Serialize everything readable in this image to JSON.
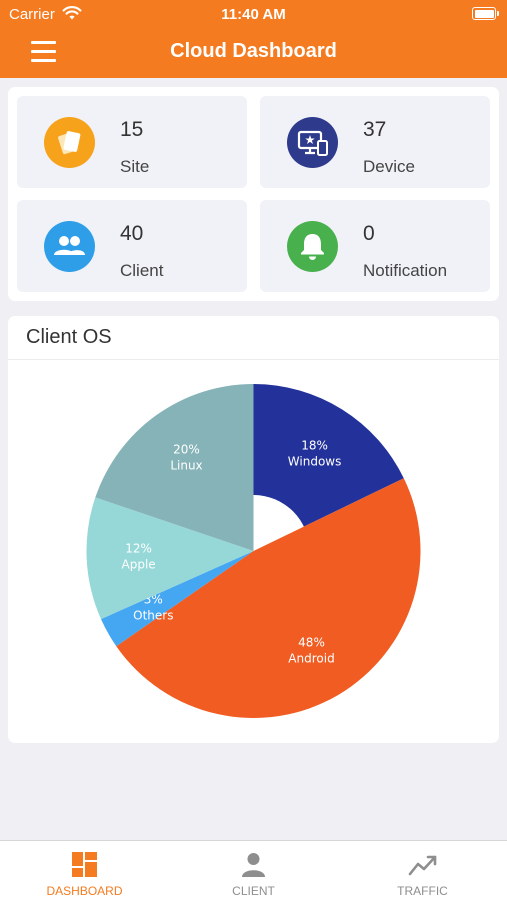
{
  "status_bar": {
    "carrier": "Carrier",
    "time": "11:40 AM"
  },
  "header": {
    "title": "Cloud Dashboard"
  },
  "stats": [
    {
      "value": "15",
      "label": "Site",
      "icon": "cards-icon",
      "color": "#f7a21b"
    },
    {
      "value": "37",
      "label": "Device",
      "icon": "device-icon",
      "color": "#2e3a8c"
    },
    {
      "value": "40",
      "label": "Client",
      "icon": "people-icon",
      "color": "#2f9ee8"
    },
    {
      "value": "0",
      "label": "Notification",
      "icon": "bell-icon",
      "color": "#49b04e"
    }
  ],
  "client_os": {
    "title": "Client OS",
    "chart_data": {
      "type": "pie",
      "title": "Client OS",
      "donut": true,
      "slices": [
        {
          "name": "Windows",
          "percent": 18,
          "label": "18%",
          "color": "#23329b"
        },
        {
          "name": "Android",
          "percent": 48,
          "label": "48%",
          "color": "#f05c22"
        },
        {
          "name": "Others",
          "percent": 3,
          "label": "3%",
          "color": "#45a6f2"
        },
        {
          "name": "Apple",
          "percent": 12,
          "label": "12%",
          "color": "#95d8d7"
        },
        {
          "name": "Linux",
          "percent": 20,
          "label": "20%",
          "color": "#86b3b8"
        }
      ]
    }
  },
  "tabs": [
    {
      "label": "DASHBOARD",
      "icon": "dashboard-icon",
      "active": true
    },
    {
      "label": "CLIENT",
      "icon": "person-icon",
      "active": false
    },
    {
      "label": "TRAFFIC",
      "icon": "trend-icon",
      "active": false
    }
  ],
  "colors": {
    "accent": "#f47b20",
    "inactive": "#8e8e8e"
  }
}
